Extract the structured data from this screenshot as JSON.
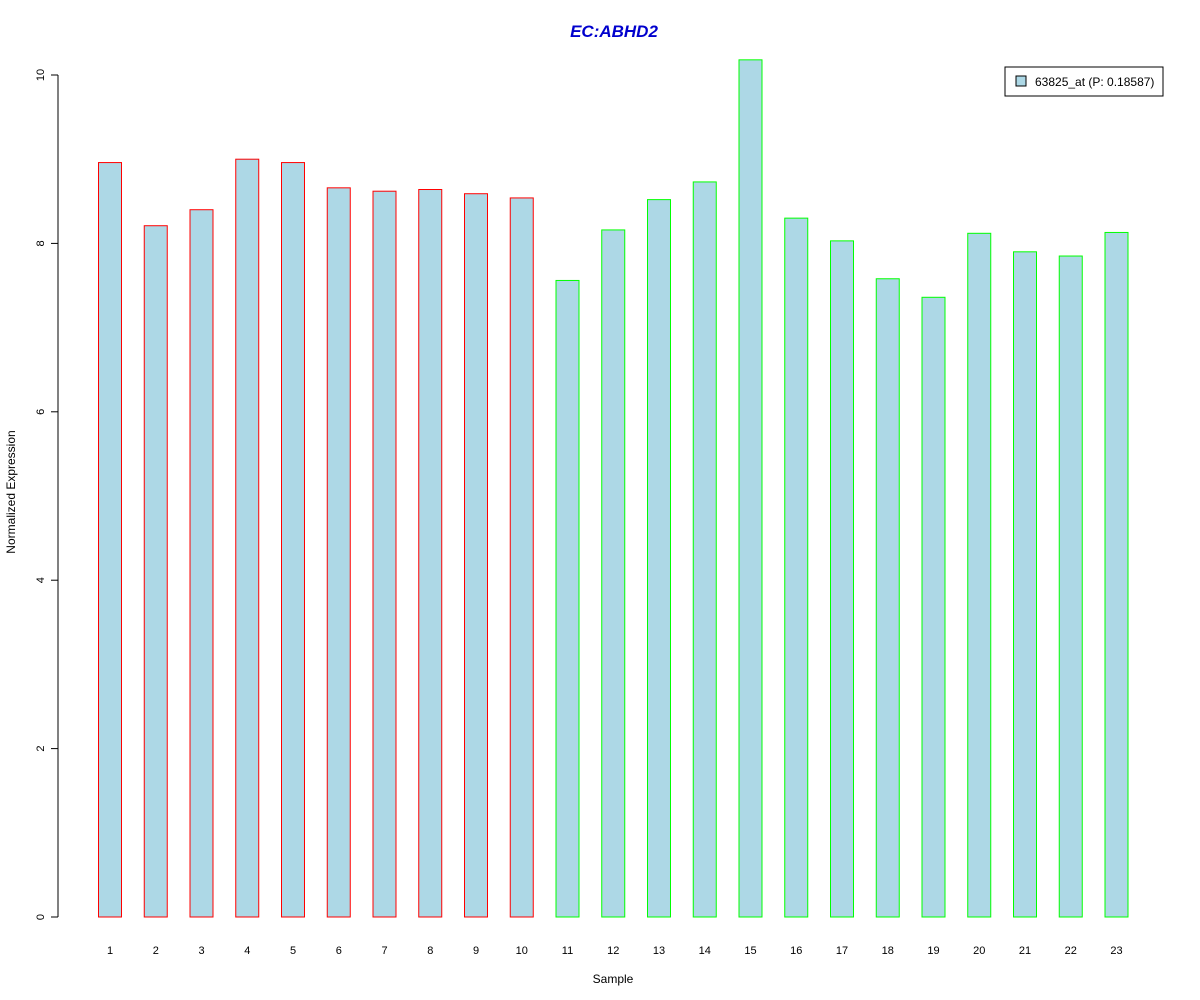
{
  "chart_data": {
    "type": "bar",
    "title": "EC:ABHD2",
    "xlabel": "Sample",
    "ylabel": "Normalized Expression",
    "categories": [
      "1",
      "2",
      "3",
      "4",
      "5",
      "6",
      "7",
      "8",
      "9",
      "10",
      "11",
      "12",
      "13",
      "14",
      "15",
      "16",
      "17",
      "18",
      "19",
      "20",
      "21",
      "22",
      "23"
    ],
    "values": [
      8.96,
      8.21,
      8.4,
      9.0,
      8.96,
      8.66,
      8.62,
      8.64,
      8.59,
      8.54,
      7.56,
      8.16,
      8.52,
      8.73,
      10.18,
      8.3,
      8.03,
      7.58,
      7.36,
      8.12,
      7.9,
      7.85,
      8.13
    ],
    "group_colors": [
      "#ff0000",
      "#ff0000",
      "#ff0000",
      "#ff0000",
      "#ff0000",
      "#ff0000",
      "#ff0000",
      "#ff0000",
      "#ff0000",
      "#ff0000",
      "#00ff00",
      "#00ff00",
      "#00ff00",
      "#00ff00",
      "#00ff00",
      "#00ff00",
      "#00ff00",
      "#00ff00",
      "#00ff00",
      "#00ff00",
      "#00ff00",
      "#00ff00",
      "#00ff00"
    ],
    "yticks": [
      "0",
      "2",
      "4",
      "6",
      "8",
      "10"
    ],
    "ylim": [
      0,
      10.2
    ],
    "grid": false,
    "legend": {
      "position": "top-right",
      "entries": [
        {
          "label": "63825_at (P: 0.18587)",
          "fill": "#add8e6"
        }
      ]
    },
    "colors": {
      "bar_fill": "#add8e6",
      "title": "#0000cd",
      "axis": "#000000"
    }
  }
}
